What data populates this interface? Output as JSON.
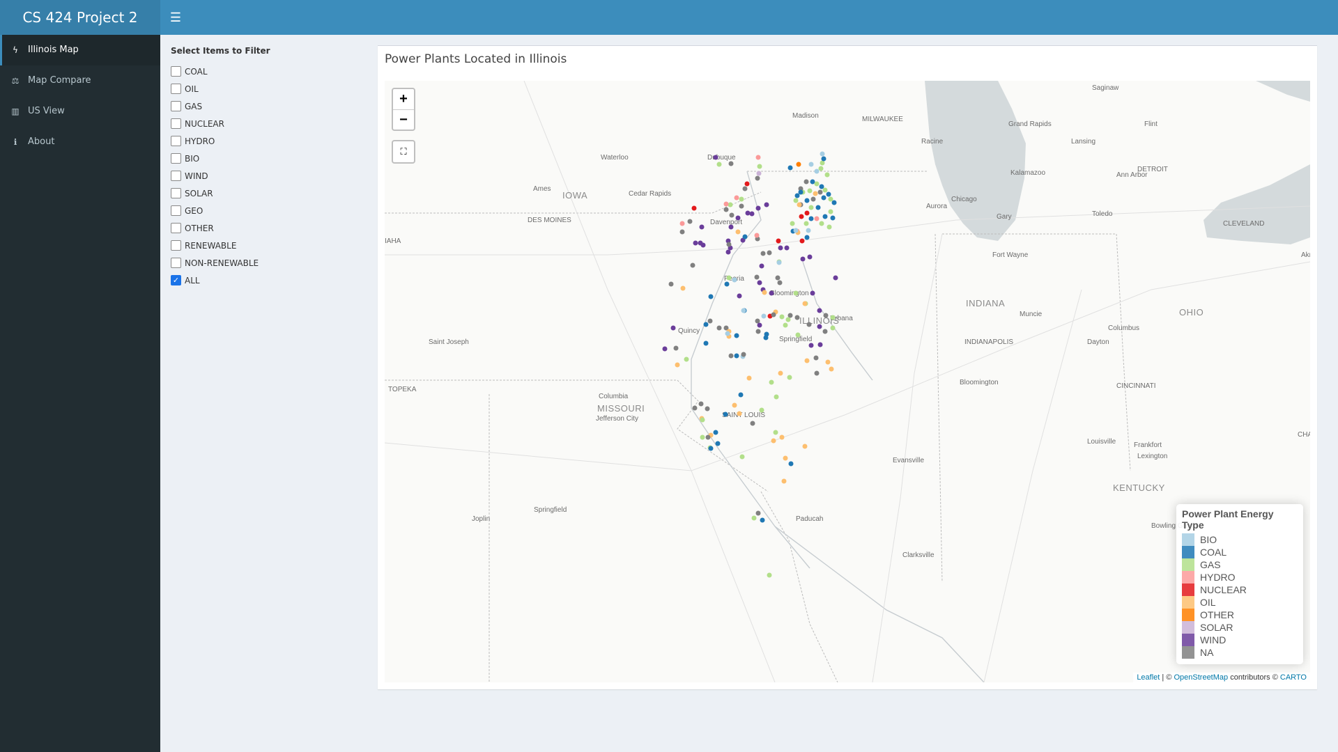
{
  "app": {
    "title": "CS 424 Project 2",
    "menu_icon": "hamburger-icon"
  },
  "sidebar": {
    "items": [
      {
        "label": "Illinois Map",
        "icon": "bolt-icon",
        "glyph": "ϟ",
        "active": true
      },
      {
        "label": "Map Compare",
        "icon": "balance-scale-icon",
        "glyph": "⚖",
        "active": false
      },
      {
        "label": "US View",
        "icon": "map-icon",
        "glyph": "▥",
        "active": false
      },
      {
        "label": "About",
        "icon": "info-icon",
        "glyph": "ℹ",
        "active": false
      }
    ]
  },
  "filter": {
    "title": "Select Items to Filter",
    "options": [
      {
        "label": "COAL",
        "checked": false
      },
      {
        "label": "OIL",
        "checked": false
      },
      {
        "label": "GAS",
        "checked": false
      },
      {
        "label": "NUCLEAR",
        "checked": false
      },
      {
        "label": "HYDRO",
        "checked": false
      },
      {
        "label": "BIO",
        "checked": false
      },
      {
        "label": "WIND",
        "checked": false
      },
      {
        "label": "SOLAR",
        "checked": false
      },
      {
        "label": "GEO",
        "checked": false
      },
      {
        "label": "OTHER",
        "checked": false
      },
      {
        "label": "RENEWABLE",
        "checked": false
      },
      {
        "label": "NON-RENEWABLE",
        "checked": false
      },
      {
        "label": "ALL",
        "checked": true
      }
    ]
  },
  "map": {
    "title": "Power Plants Located in Illinois",
    "zoom_in": "+",
    "zoom_out": "−",
    "reset_icon": "reset-view-icon",
    "legend": {
      "title": "Power Plant Energy Type",
      "entries": [
        {
          "label": "BIO",
          "color": "#a6cee3"
        },
        {
          "label": "COAL",
          "color": "#1f78b4"
        },
        {
          "label": "GAS",
          "color": "#b2df8a"
        },
        {
          "label": "HYDRO",
          "color": "#fb9a99"
        },
        {
          "label": "NUCLEAR",
          "color": "#e31a1c"
        },
        {
          "label": "OIL",
          "color": "#fdbf6f"
        },
        {
          "label": "OTHER",
          "color": "#ff7f00"
        },
        {
          "label": "SOLAR",
          "color": "#cab2d6"
        },
        {
          "label": "WIND",
          "color": "#6a3d9a"
        },
        {
          "label": "NA",
          "color": "#808080"
        }
      ]
    },
    "attribution": {
      "leaflet": "Leaflet",
      "sep": " | © ",
      "osm": "OpenStreetMap",
      "mid": " contributors © ",
      "carto": "CARTO"
    },
    "place_labels": [
      "Saginaw",
      "Madison",
      "MILWAUKEE",
      "Grand Rapids",
      "Flint",
      "Racine",
      "Lansing",
      "Waterloo",
      "Dubuque",
      "Kalamazoo",
      "Ann Arbor",
      "DETROIT",
      "Ames",
      "Cedar Rapids",
      "IOWA",
      "DES MOINES",
      "Aurora",
      "Chicago",
      "Gary",
      "Toledo",
      "CLEVELAND",
      "Davenport",
      "Fort Wayne",
      "Akron",
      "Peoria",
      "Bloomington",
      "INDIANA",
      "ILLINOIS",
      "Muncie",
      "OHIO",
      "Quincy",
      "Urbana",
      "Columbus",
      "Saint Joseph",
      "Springfield",
      "INDIANAPOLIS",
      "Dayton",
      "Bloomington",
      "TOPEKA",
      "CINCINNATI",
      "Columbia",
      "MISSOURI",
      "Jefferson City",
      "SAINT LOUIS",
      "Louisville",
      "Frankfort",
      "Lexington",
      "CHARLESTON",
      "Evansville",
      "KENTUCKY",
      "Joplin",
      "Springfield",
      "Paducah",
      "Bowling Green",
      "Clarksville",
      "IAHA"
    ]
  }
}
